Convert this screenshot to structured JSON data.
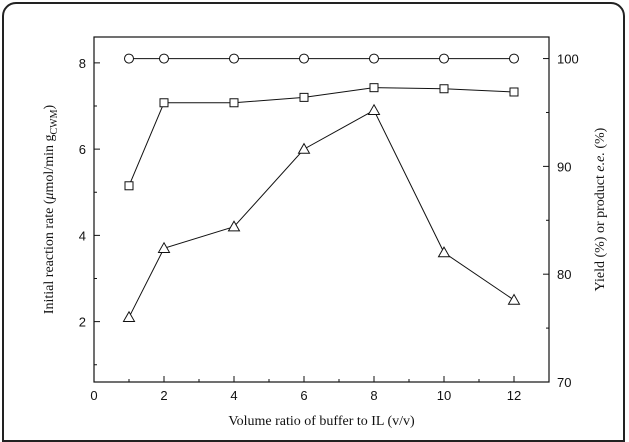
{
  "chart_data": {
    "type": "line",
    "xlabel": "Volume ratio of buffer to IL (v/v)",
    "ylabel_left": {
      "prefix": "Initial reaction rate (",
      "mu": "μ",
      "mid": "mol/min g",
      "sub": "CWM",
      "suffix": ")"
    },
    "ylabel_right": {
      "prefix": "Yield (%) or product ",
      "italic": "e.e.",
      "suffix": " (%)"
    },
    "xlim": [
      0,
      13
    ],
    "ylim_left": [
      0.6,
      8.6
    ],
    "ylim_right": [
      70,
      102
    ],
    "x_ticks": [
      0,
      2,
      4,
      6,
      8,
      10,
      12
    ],
    "y_left_ticks": [
      2,
      4,
      6,
      8
    ],
    "y_right_ticks": [
      70,
      80,
      90,
      100
    ],
    "grid": false,
    "series": [
      {
        "marker": "circle",
        "axis": "right",
        "x": [
          1,
          2,
          4,
          6,
          8,
          10,
          12
        ],
        "values": [
          100,
          100,
          100,
          100,
          100,
          100,
          100
        ]
      },
      {
        "marker": "square",
        "axis": "right",
        "x": [
          1,
          2,
          4,
          6,
          8,
          10,
          12
        ],
        "values": [
          88.2,
          95.9,
          95.9,
          96.4,
          97.3,
          97.2,
          96.9
        ]
      },
      {
        "marker": "triangle",
        "axis": "left",
        "x": [
          1,
          2,
          4,
          6,
          8,
          10,
          12
        ],
        "values": [
          2.1,
          3.7,
          4.2,
          6.0,
          6.9,
          3.6,
          2.5
        ]
      }
    ]
  }
}
